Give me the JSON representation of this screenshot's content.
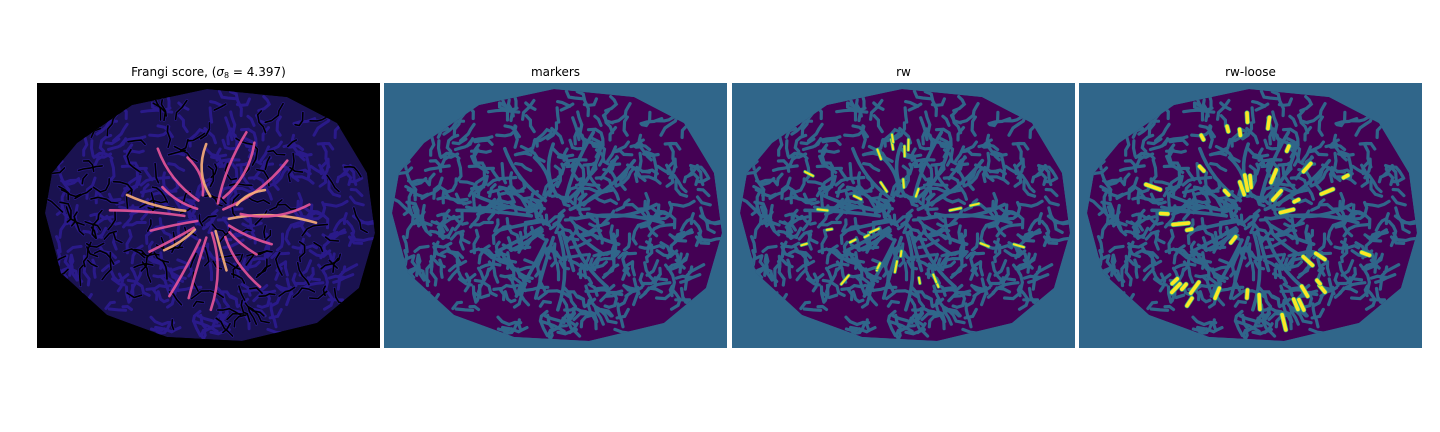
{
  "figure": {
    "panels": [
      {
        "title_prefix": "Frangi score, (",
        "title_sigma": "σ",
        "title_sub": "8",
        "title_suffix": " = 4.397)",
        "colormap": "magma"
      },
      {
        "title": "markers",
        "colormap": "viridis"
      },
      {
        "title": "rw",
        "colormap": "viridis"
      },
      {
        "title": "rw-loose",
        "colormap": "viridis"
      }
    ]
  },
  "colors": {
    "background_dark": "#000000",
    "frangi_texture": "#2a1a8a",
    "frangi_vessel": "#e8559a",
    "frangi_vessel_bright": "#fcb07a",
    "seg_background": "#30668a",
    "seg_texture": "#440154",
    "seg_highlight": "#fde725",
    "seg_highlight_edge": "#35b779"
  }
}
